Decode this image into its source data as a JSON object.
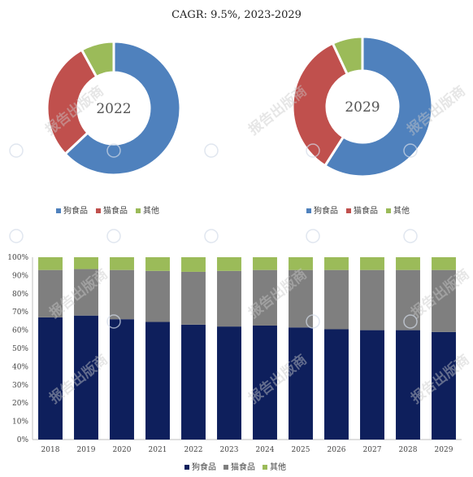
{
  "title": "CAGR:   9.5%, 2023-2029",
  "watermark": {
    "text": "报告出版商"
  },
  "colors": {
    "dog": "#4f81bd",
    "cat": "#c0504d",
    "other": "#9bbb59",
    "bar_dog": "#0e1f5c",
    "bar_cat": "#7f7f7f",
    "bar_other": "#9bbb59"
  },
  "chart_data": [
    {
      "type": "pie",
      "donut": true,
      "center_label": "2022",
      "categories": [
        "狗食品",
        "猫食品",
        "其他"
      ],
      "values": [
        63,
        29,
        8
      ],
      "legend": {
        "placement": "bottom",
        "labels": [
          "狗食品",
          "猫食品",
          "其他"
        ]
      }
    },
    {
      "type": "pie",
      "donut": true,
      "center_label": "2029",
      "categories": [
        "狗食品",
        "猫食品",
        "其他"
      ],
      "values": [
        59,
        34,
        7
      ],
      "legend": {
        "placement": "bottom",
        "labels": [
          "狗食品",
          "猫食品",
          "其他"
        ]
      }
    },
    {
      "type": "bar",
      "stacked": "percent",
      "categories": [
        "2018",
        "2019",
        "2020",
        "2021",
        "2022",
        "2023",
        "2024",
        "2025",
        "2026",
        "2027",
        "2028",
        "2029"
      ],
      "series": [
        {
          "name": "狗食品",
          "values": [
            67,
            68,
            66,
            64.5,
            63,
            62,
            62.5,
            61.5,
            60.5,
            60,
            60,
            59
          ]
        },
        {
          "name": "猫食品",
          "values": [
            26,
            25.5,
            27,
            28,
            29,
            30.5,
            30.5,
            31.5,
            32.5,
            33,
            33,
            34
          ]
        },
        {
          "name": "其他",
          "values": [
            7,
            6.5,
            7,
            7.5,
            8,
            7.5,
            7,
            7,
            7,
            7,
            7,
            7
          ]
        }
      ],
      "ylim": [
        0,
        100
      ],
      "yticks": [
        "0%",
        "10%",
        "20%",
        "30%",
        "40%",
        "50%",
        "60%",
        "70%",
        "80%",
        "90%",
        "100%"
      ],
      "grid": false,
      "legend": {
        "placement": "bottom",
        "labels": [
          "狗食品",
          "猫食品",
          "其他"
        ]
      }
    }
  ]
}
